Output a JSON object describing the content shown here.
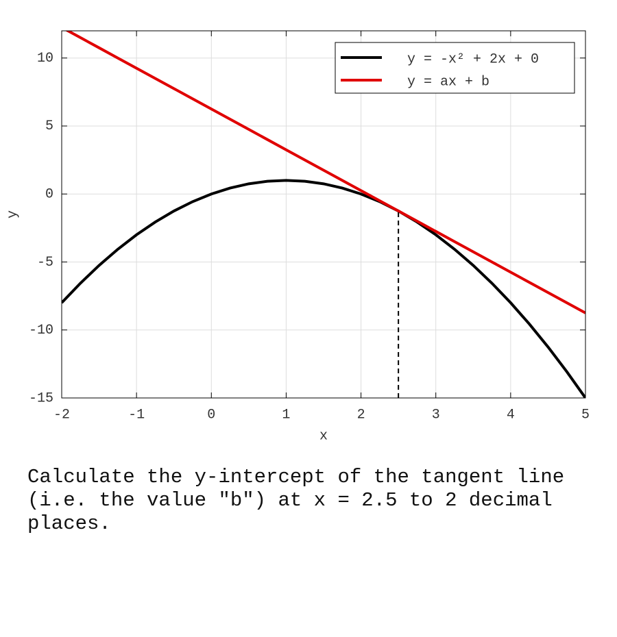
{
  "chart_data": {
    "type": "line",
    "x": [
      -2,
      -1.75,
      -1.5,
      -1.25,
      -1,
      -0.75,
      -0.5,
      -0.25,
      0,
      0.25,
      0.5,
      0.75,
      1,
      1.25,
      1.5,
      1.75,
      2,
      2.25,
      2.5,
      2.75,
      3,
      3.25,
      3.5,
      3.75,
      4,
      4.25,
      4.5,
      4.75,
      5
    ],
    "series": [
      {
        "name": "y = -x² + 2x + 0",
        "color": "#000000",
        "values": [
          -8,
          -6.5625,
          -5.25,
          -4.0625,
          -3,
          -2.0625,
          -1.25,
          -0.5625,
          0,
          0.4375,
          0.75,
          0.9375,
          1,
          0.9375,
          0.75,
          0.4375,
          0,
          -0.5625,
          -1.25,
          -2.0625,
          -3,
          -4.0625,
          -5.25,
          -6.5625,
          -8,
          -9.5625,
          -11.25,
          -13.0625,
          -15
        ]
      },
      {
        "name": "y = ax + b",
        "color": "#e00000",
        "values": [
          12.25,
          11.5,
          10.75,
          10,
          9.25,
          8.5,
          7.75,
          7,
          6.25,
          5.5,
          4.75,
          4,
          3.25,
          2.5,
          1.75,
          1,
          0.25,
          -0.5,
          -1.25,
          -2,
          -2.75,
          -3.5,
          -4.25,
          -5,
          -5.75,
          -6.5,
          -7.25,
          -8,
          -8.75
        ]
      }
    ],
    "tangent_x": 2.5,
    "xlabel": "x",
    "ylabel": "y",
    "xlim": [
      -2,
      5
    ],
    "ylim": [
      -15,
      12
    ],
    "xticks": [
      -2,
      -1,
      0,
      1,
      2,
      3,
      4,
      5
    ],
    "yticks": [
      -15,
      -10,
      -5,
      0,
      5,
      10
    ],
    "grid": true,
    "legend": "upper right"
  },
  "question": "Calculate the y-intercept of the tangent line (i.e. the value \"b\") at x = 2.5 to 2 decimal places."
}
